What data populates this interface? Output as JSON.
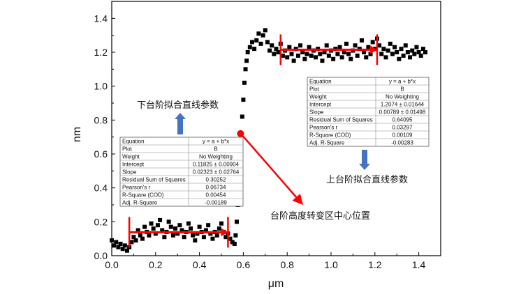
{
  "chart_data": {
    "type": "scatter",
    "xlabel": "μm",
    "ylabel": "nm",
    "xlim": [
      0.0,
      1.5
    ],
    "ylim": [
      0.0,
      1.5
    ],
    "xticks": [
      "0.0",
      "0.2",
      "0.4",
      "0.6",
      "0.8",
      "1.0",
      "1.2",
      "1.4"
    ],
    "yticks": [
      "0.0",
      "0.2",
      "0.4",
      "0.6",
      "0.8",
      "1.0",
      "1.2",
      "1.4"
    ],
    "grid": false,
    "series": [
      {
        "marker_color": "#000000",
        "points": [
          [
            0.0,
            0.09
          ],
          [
            0.01,
            0.06
          ],
          [
            0.02,
            0.08
          ],
          [
            0.03,
            0.05
          ],
          [
            0.04,
            0.07
          ],
          [
            0.05,
            0.04
          ],
          [
            0.06,
            0.06
          ],
          [
            0.07,
            0.03
          ],
          [
            0.08,
            0.05
          ],
          [
            0.09,
            0.08
          ],
          [
            0.1,
            0.11
          ],
          [
            0.11,
            0.09
          ],
          [
            0.12,
            0.15
          ],
          [
            0.13,
            0.12
          ],
          [
            0.14,
            0.1
          ],
          [
            0.15,
            0.17
          ],
          [
            0.16,
            0.14
          ],
          [
            0.17,
            0.12
          ],
          [
            0.18,
            0.19
          ],
          [
            0.19,
            0.16
          ],
          [
            0.2,
            0.13
          ],
          [
            0.21,
            0.18
          ],
          [
            0.22,
            0.21
          ],
          [
            0.23,
            0.15
          ],
          [
            0.24,
            0.11
          ],
          [
            0.25,
            0.14
          ],
          [
            0.26,
            0.2
          ],
          [
            0.27,
            0.17
          ],
          [
            0.28,
            0.12
          ],
          [
            0.29,
            0.16
          ],
          [
            0.3,
            0.13
          ],
          [
            0.31,
            0.18
          ],
          [
            0.32,
            0.15
          ],
          [
            0.33,
            0.11
          ],
          [
            0.34,
            0.14
          ],
          [
            0.35,
            0.19
          ],
          [
            0.36,
            0.16
          ],
          [
            0.37,
            0.12
          ],
          [
            0.38,
            0.09
          ],
          [
            0.39,
            0.13
          ],
          [
            0.4,
            0.17
          ],
          [
            0.41,
            0.14
          ],
          [
            0.42,
            0.11
          ],
          [
            0.43,
            0.15
          ],
          [
            0.44,
            0.18
          ],
          [
            0.45,
            0.13
          ],
          [
            0.46,
            0.1
          ],
          [
            0.47,
            0.14
          ],
          [
            0.48,
            0.12
          ],
          [
            0.49,
            0.16
          ],
          [
            0.5,
            0.19
          ],
          [
            0.51,
            0.14
          ],
          [
            0.52,
            0.11
          ],
          [
            0.53,
            0.13
          ],
          [
            0.54,
            0.1
          ],
          [
            0.55,
            0.08
          ],
          [
            0.56,
            0.07
          ],
          [
            0.565,
            0.12
          ],
          [
            0.57,
            0.2
          ],
          [
            0.575,
            0.3
          ],
          [
            0.58,
            0.45
          ],
          [
            0.585,
            0.6
          ],
          [
            0.59,
            0.72
          ],
          [
            0.595,
            0.82
          ],
          [
            0.6,
            0.92
          ],
          [
            0.605,
            1.02
          ],
          [
            0.61,
            1.1
          ],
          [
            0.615,
            1.15
          ],
          [
            0.62,
            1.2
          ],
          [
            0.63,
            1.23
          ],
          [
            0.64,
            1.26
          ],
          [
            0.65,
            1.22
          ],
          [
            0.66,
            1.27
          ],
          [
            0.67,
            1.31
          ],
          [
            0.68,
            1.25
          ],
          [
            0.69,
            1.3
          ],
          [
            0.7,
            1.33
          ],
          [
            0.71,
            1.26
          ],
          [
            0.72,
            1.21
          ],
          [
            0.73,
            1.24
          ],
          [
            0.74,
            1.19
          ],
          [
            0.75,
            1.22
          ],
          [
            0.76,
            1.2
          ],
          [
            0.77,
            1.25
          ],
          [
            0.78,
            1.18
          ],
          [
            0.79,
            1.21
          ],
          [
            0.8,
            1.17
          ],
          [
            0.81,
            1.23
          ],
          [
            0.82,
            1.19
          ],
          [
            0.83,
            1.15
          ],
          [
            0.84,
            1.22
          ],
          [
            0.85,
            1.18
          ],
          [
            0.86,
            1.24
          ],
          [
            0.87,
            1.2
          ],
          [
            0.88,
            1.16
          ],
          [
            0.89,
            1.19
          ],
          [
            0.9,
            1.23
          ],
          [
            0.91,
            1.18
          ],
          [
            0.92,
            1.21
          ],
          [
            0.93,
            1.17
          ],
          [
            0.94,
            1.22
          ],
          [
            0.95,
            1.19
          ],
          [
            0.96,
            1.15
          ],
          [
            0.97,
            1.2
          ],
          [
            0.98,
            1.24
          ],
          [
            0.99,
            1.18
          ],
          [
            1.0,
            1.21
          ],
          [
            1.01,
            1.16
          ],
          [
            1.02,
            1.22
          ],
          [
            1.03,
            1.19
          ],
          [
            1.04,
            1.23
          ],
          [
            1.05,
            1.17
          ],
          [
            1.06,
            1.2
          ],
          [
            1.07,
            1.25
          ],
          [
            1.08,
            1.19
          ],
          [
            1.09,
            1.16
          ],
          [
            1.1,
            1.21
          ],
          [
            1.11,
            1.24
          ],
          [
            1.12,
            1.18
          ],
          [
            1.13,
            1.22
          ],
          [
            1.14,
            1.27
          ],
          [
            1.15,
            1.2
          ],
          [
            1.16,
            1.17
          ],
          [
            1.17,
            1.23
          ],
          [
            1.18,
            1.19
          ],
          [
            1.19,
            1.26
          ],
          [
            1.2,
            1.22
          ],
          [
            1.21,
            1.28
          ],
          [
            1.22,
            1.24
          ],
          [
            1.23,
            1.19
          ],
          [
            1.24,
            1.22
          ],
          [
            1.25,
            1.17
          ],
          [
            1.26,
            1.21
          ],
          [
            1.27,
            1.25
          ],
          [
            1.28,
            1.19
          ],
          [
            1.29,
            1.23
          ],
          [
            1.3,
            1.2
          ],
          [
            1.31,
            1.16
          ],
          [
            1.32,
            1.22
          ],
          [
            1.33,
            1.18
          ],
          [
            1.34,
            1.24
          ],
          [
            1.35,
            1.2
          ],
          [
            1.36,
            1.17
          ],
          [
            1.37,
            1.21
          ],
          [
            1.38,
            1.19
          ],
          [
            1.39,
            1.23
          ],
          [
            1.4,
            1.2
          ],
          [
            1.41,
            1.18
          ],
          [
            1.42,
            1.22
          ],
          [
            1.43,
            1.2
          ]
        ]
      }
    ],
    "fit_lines": [
      {
        "x": [
          0.08,
          0.53
        ],
        "y": [
          0.138,
          0.138
        ],
        "color": "#ff0000"
      },
      {
        "x": [
          0.77,
          1.21
        ],
        "y": [
          1.215,
          1.215
        ],
        "color": "#ff0000"
      }
    ],
    "transition_marker": {
      "x": 0.6,
      "y": 0.72,
      "color": "#ff0000"
    },
    "annotations": [
      {
        "text": "下台阶拟合直线参数"
      },
      {
        "text": "上台阶拟合直线参数"
      },
      {
        "text": "台阶高度转变区中心位置"
      }
    ],
    "tables": [
      {
        "rows": [
          [
            "Equation",
            "y = a + b*x"
          ],
          [
            "Plot",
            "B"
          ],
          [
            "Weight",
            "No Weighting"
          ],
          [
            "Intercept",
            "0.11825 ± 0.00904"
          ],
          [
            "Slope",
            "0.02323 ± 0.02764"
          ],
          [
            "Residual Sum of Squares",
            "0.30252"
          ],
          [
            "Pearson's r",
            "0.06734"
          ],
          [
            "R-Square (COD)",
            "0.00454"
          ],
          [
            "Adj. R-Square",
            "-0.00189"
          ]
        ]
      },
      {
        "rows": [
          [
            "Equation",
            "y = a + b*x"
          ],
          [
            "Plot",
            "B"
          ],
          [
            "Weight",
            "No Weighting"
          ],
          [
            "Intercept",
            "1.2074 ± 0.01644"
          ],
          [
            "Slope",
            "0.00789 ± 0.01498"
          ],
          [
            "Residual Sum of Squares",
            "0.64095"
          ],
          [
            "Pearson's r",
            "0.03297"
          ],
          [
            "R-Square (COD)",
            "0.00109"
          ],
          [
            "Adj. R-Square",
            "-0.00283"
          ]
        ]
      }
    ],
    "colors": {
      "axes": "#000000",
      "fit": "#ff0000",
      "callout_arrow": "#4472c4",
      "table_bg": "#ffffff",
      "table_grid": "#888888"
    }
  }
}
